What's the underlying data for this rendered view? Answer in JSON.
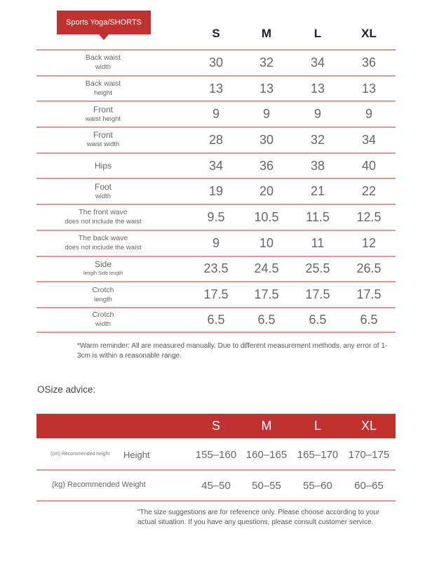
{
  "title": "Sports Yoga/SHORTS",
  "sizes": [
    "S",
    "M",
    "L",
    "XL"
  ],
  "rows": [
    {
      "line1": "Back waist",
      "line2": "width",
      "values": [
        "30",
        "32",
        "34",
        "36"
      ]
    },
    {
      "line1": "Back waist",
      "line2": "height",
      "values": [
        "13",
        "13",
        "13",
        "13"
      ]
    },
    {
      "line1": "Front",
      "line2": "waist height",
      "values": [
        "9",
        "9",
        "9",
        "9"
      ]
    },
    {
      "line1": "Front",
      "line2": "waist width",
      "values": [
        "28",
        "30",
        "32",
        "34"
      ]
    },
    {
      "line1": "Hips",
      "line2": "",
      "values": [
        "34",
        "36",
        "38",
        "40"
      ]
    },
    {
      "line1": "Foot",
      "line2": "width",
      "values": [
        "19",
        "20",
        "21",
        "22"
      ]
    },
    {
      "line1": "The front wave",
      "line2": "does not include the waist",
      "values": [
        "9.5",
        "10.5",
        "11.5",
        "12.5"
      ]
    },
    {
      "line1": "The back wave",
      "line2": "does not include the waist",
      "values": [
        "9",
        "10",
        "11",
        "12"
      ]
    },
    {
      "line1": "Side",
      "line2": "length Side length",
      "values": [
        "23.5",
        "24.5",
        "25.5",
        "26.5"
      ]
    },
    {
      "line1": "Crotch",
      "line2": "length",
      "values": [
        "17.5",
        "17.5",
        "17.5",
        "17.5"
      ]
    },
    {
      "line1": "Crotch",
      "line2": "width",
      "values": [
        "6.5",
        "6.5",
        "6.5",
        "6.5"
      ]
    }
  ],
  "warm_reminder": "*Warm reminder: All are measured manually. Due to different measurement methods, any error of 1-3cm is within a reasonable range.",
  "size_advice": {
    "heading": "OSize advice:",
    "sizes": [
      "S",
      "M",
      "L",
      "XL"
    ],
    "height_small_label": "(cm) Recommended height",
    "height_label": "Height",
    "height_values": [
      "155–160",
      "160–165",
      "165–170",
      "170–175"
    ],
    "weight_label": "(kg) Recommended Weight",
    "weight_values": [
      "45–50",
      "50–55",
      "55–60",
      "60–65"
    ],
    "note": "\"The size suggestions are for reference only. Please choose according to your actual situation. If you have any questions, please consult customer service."
  },
  "colors": {
    "accent": "#c0312f",
    "rule": "#d79a98"
  }
}
